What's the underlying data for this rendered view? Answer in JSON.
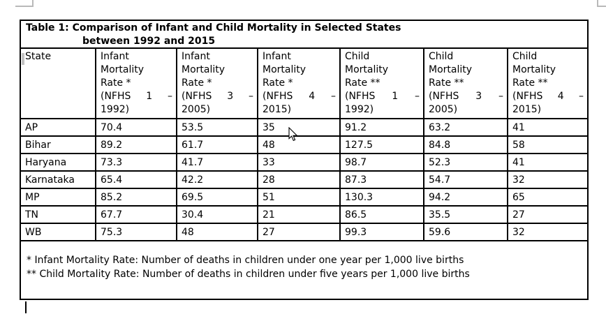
{
  "document": {
    "title": {
      "line1": "Table 1: Comparison of Infant and Child Mortality in Selected States",
      "line2": "between 1992 and 2015"
    },
    "table": {
      "columns": [
        {
          "label": "State",
          "lines": [
            "State"
          ]
        },
        {
          "label": "Infant Mortality Rate * (NFHS 1 – 1992)",
          "lines": [
            "Infant",
            "Mortality",
            "Rate *",
            "(NFHS 1 –",
            "1992)"
          ]
        },
        {
          "label": "Infant Mortality Rate * (NFHS 3 – 2005)",
          "lines": [
            "Infant",
            "Mortality",
            "Rate *",
            "(NFHS 3 –",
            "2005)"
          ]
        },
        {
          "label": "Infant Mortality Rate * (NFHS 4 – 2015)",
          "lines": [
            "Infant",
            "Mortality",
            "Rate *",
            "(NFHS 4 –",
            "2015)"
          ]
        },
        {
          "label": "Child Mortality Rate ** (NFHS 1 – 1992)",
          "lines": [
            "Child",
            "Mortality",
            "Rate **",
            "(NFHS 1 –",
            "1992)"
          ]
        },
        {
          "label": "Child Mortality Rate ** (NFHS 3 – 2005)",
          "lines": [
            "Child",
            "Mortality",
            "Rate **",
            "(NFHS 3 –",
            "2005)"
          ]
        },
        {
          "label": "Child Mortality Rate ** (NFHS 4 – 2015)",
          "lines": [
            "Child",
            "Mortality",
            "Rate **",
            "(NFHS 4 –",
            "2015)"
          ]
        }
      ],
      "rows": [
        [
          "AP",
          "70.4",
          "53.5",
          "35",
          "91.2",
          "63.2",
          "41"
        ],
        [
          "Bihar",
          "89.2",
          "61.7",
          "48",
          "127.5",
          "84.8",
          "58"
        ],
        [
          "Haryana",
          "73.3",
          "41.7",
          "33",
          "98.7",
          "52.3",
          "41"
        ],
        [
          "Karnataka",
          "65.4",
          "42.2",
          "28",
          "87.3",
          "54.7",
          "32"
        ],
        [
          "MP",
          "85.2",
          "69.5",
          "51",
          "130.3",
          "94.2",
          "65"
        ],
        [
          "TN",
          "67.7",
          "30.4",
          "21",
          "86.5",
          "35.5",
          "27"
        ],
        [
          "WB",
          "75.3",
          "48",
          "27",
          "99.3",
          "59.6",
          "32"
        ]
      ],
      "footnotes": [
        "* Infant Mortality Rate: Number of deaths in children under one year per 1,000 live births",
        "** Child Mortality Rate: Number of deaths in children under five years per 1,000 live births"
      ]
    }
  },
  "indicators": {
    "mouse_cursor": "arrow-pointer",
    "text_caret": "visible",
    "text_boundary_marks": "page-margin-corners"
  },
  "colors": {
    "page_bg": "#ffffff",
    "table_border": "#000000",
    "text": "#000000",
    "boundary_mark": "#b9b9b9",
    "cell_selection_bar": "#c3c3c3"
  }
}
